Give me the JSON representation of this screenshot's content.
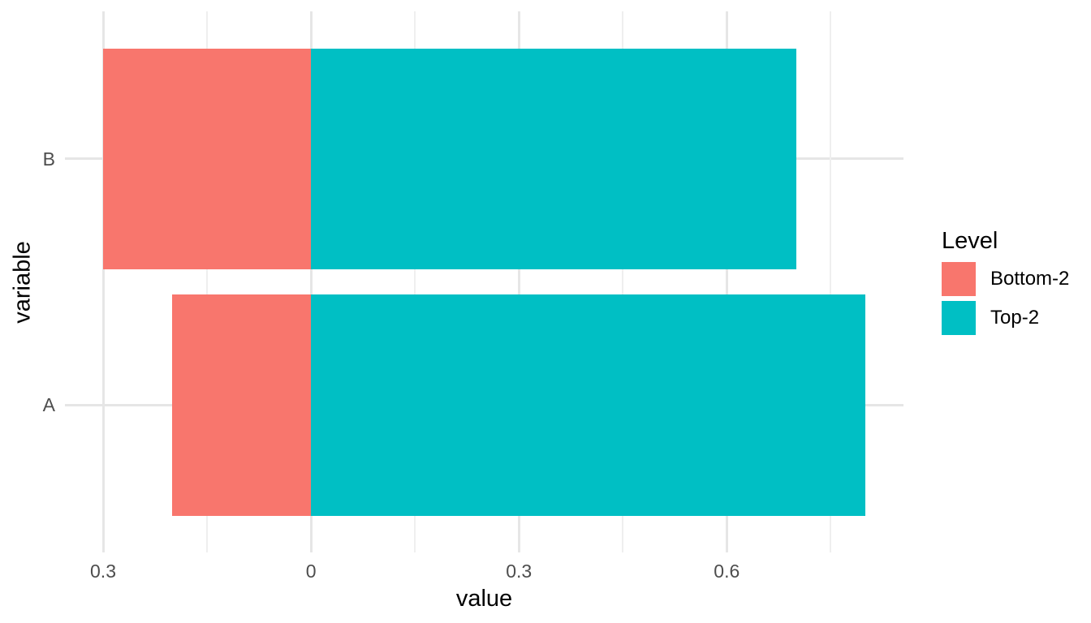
{
  "chart_data": {
    "type": "bar",
    "orientation": "horizontal",
    "stacked": true,
    "diverging": true,
    "title": "",
    "xlabel": "value",
    "ylabel": "variable",
    "categories": [
      "B",
      "A"
    ],
    "series": [
      {
        "name": "Bottom-2",
        "color": "#F8766D",
        "direction": "negative",
        "values": [
          0.3,
          0.2
        ]
      },
      {
        "name": "Top-2",
        "color": "#00BFC4",
        "direction": "positive",
        "values": [
          0.7,
          0.8
        ]
      }
    ],
    "x_axis": {
      "range": [
        -0.355,
        0.855
      ],
      "ticks": [
        {
          "value": -0.3,
          "label": "0.3"
        },
        {
          "value": 0,
          "label": "0"
        },
        {
          "value": 0.3,
          "label": "0.3"
        },
        {
          "value": 0.6,
          "label": "0.6"
        }
      ],
      "minor_ticks": [
        -0.15,
        0.15,
        0.45,
        0.75
      ]
    },
    "y_axis": {
      "range": [
        0.4,
        2.6
      ],
      "category_positions": [
        2,
        1
      ],
      "bar_width": 0.9
    },
    "legend": {
      "title": "Level",
      "position": "right",
      "entries": [
        {
          "label": "Bottom-2",
          "color": "#F8766D"
        },
        {
          "label": "Top-2",
          "color": "#00BFC4"
        }
      ]
    },
    "grid": true
  },
  "style": {
    "background": "#FFFFFF",
    "grid_major": "#E6E6E6",
    "grid_minor": "#EFEFEF",
    "tick_text_color": "#4D4D4D",
    "title_text_color": "#000000"
  }
}
